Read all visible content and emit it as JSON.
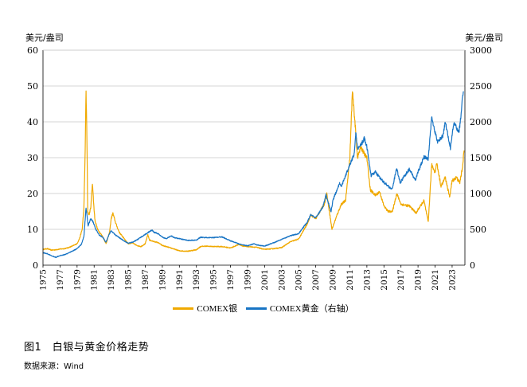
{
  "chart_data": {
    "type": "line",
    "title": "",
    "ylabel_left": "美元/盎司",
    "ylabel_right": "美元/盎司",
    "x_range": [
      1975,
      2024.5
    ],
    "x_ticks": [
      "1975",
      "1977",
      "1979",
      "1981",
      "1983",
      "1985",
      "1987",
      "1989",
      "1991",
      "1993",
      "1995",
      "1997",
      "1999",
      "2001",
      "2003",
      "2005",
      "2007",
      "2009",
      "2011",
      "2013",
      "2015",
      "2017",
      "2019",
      "2021",
      "2023"
    ],
    "y_left": {
      "range": [
        0,
        60
      ],
      "ticks": [
        "0",
        "10",
        "20",
        "30",
        "40",
        "50",
        "60"
      ]
    },
    "y_right": {
      "range": [
        0,
        3000
      ],
      "ticks": [
        "0",
        "500",
        "1000",
        "1500",
        "2000",
        "2500",
        "3000"
      ]
    },
    "grid": "horizontal",
    "legend_position": "bottom",
    "series": [
      {
        "name": "COMEX银",
        "axis": "left",
        "color": "#F0A900",
        "points": [
          [
            1975,
            4.4
          ],
          [
            1975.5,
            4.6
          ],
          [
            1976,
            4.2
          ],
          [
            1976.5,
            4.3
          ],
          [
            1977,
            4.5
          ],
          [
            1977.5,
            4.6
          ],
          [
            1978,
            4.9
          ],
          [
            1978.5,
            5.4
          ],
          [
            1979,
            6.0
          ],
          [
            1979.3,
            7.5
          ],
          [
            1979.6,
            10.0
          ],
          [
            1979.8,
            16.0
          ],
          [
            1979.95,
            32.0
          ],
          [
            1980.05,
            49.0
          ],
          [
            1980.15,
            36.0
          ],
          [
            1980.25,
            15.0
          ],
          [
            1980.4,
            14.0
          ],
          [
            1980.6,
            16.0
          ],
          [
            1980.8,
            23.0
          ],
          [
            1980.95,
            17.0
          ],
          [
            1981.1,
            12.5
          ],
          [
            1981.4,
            10.0
          ],
          [
            1981.7,
            9.0
          ],
          [
            1982,
            8.0
          ],
          [
            1982.4,
            6.0
          ],
          [
            1982.8,
            9.0
          ],
          [
            1983.0,
            13.0
          ],
          [
            1983.2,
            14.5
          ],
          [
            1983.5,
            12.0
          ],
          [
            1983.8,
            10.0
          ],
          [
            1984,
            9.0
          ],
          [
            1984.5,
            7.5
          ],
          [
            1985,
            6.0
          ],
          [
            1985.5,
            6.2
          ],
          [
            1986,
            5.5
          ],
          [
            1986.5,
            5.2
          ],
          [
            1987,
            6.0
          ],
          [
            1987.3,
            8.5
          ],
          [
            1987.5,
            7.0
          ],
          [
            1988,
            6.6
          ],
          [
            1988.5,
            6.3
          ],
          [
            1989,
            5.5
          ],
          [
            1990,
            4.8
          ],
          [
            1991,
            4.0
          ],
          [
            1992,
            3.9
          ],
          [
            1993,
            4.3
          ],
          [
            1993.5,
            5.2
          ],
          [
            1994,
            5.3
          ],
          [
            1995,
            5.2
          ],
          [
            1996,
            5.2
          ],
          [
            1997,
            4.8
          ],
          [
            1998,
            5.8
          ],
          [
            1998.5,
            5.3
          ],
          [
            1999,
            5.2
          ],
          [
            2000,
            5.0
          ],
          [
            2001,
            4.4
          ],
          [
            2002,
            4.6
          ],
          [
            2003,
            4.9
          ],
          [
            2004,
            6.5
          ],
          [
            2005,
            7.3
          ],
          [
            2006,
            11.5
          ],
          [
            2006.4,
            14.0
          ],
          [
            2007,
            13.0
          ],
          [
            2008,
            17.0
          ],
          [
            2008.3,
            20.0
          ],
          [
            2008.9,
            10.0
          ],
          [
            2009.5,
            14.0
          ],
          [
            2010,
            17.0
          ],
          [
            2010.5,
            18.0
          ],
          [
            2011,
            30.0
          ],
          [
            2011.3,
            48.5
          ],
          [
            2011.6,
            40.0
          ],
          [
            2011.9,
            30.0
          ],
          [
            2012.3,
            33.0
          ],
          [
            2012.7,
            31.0
          ],
          [
            2013,
            30.0
          ],
          [
            2013.4,
            21.0
          ],
          [
            2014,
            19.5
          ],
          [
            2014.5,
            20.5
          ],
          [
            2015,
            16.5
          ],
          [
            2015.5,
            15.0
          ],
          [
            2016,
            15.0
          ],
          [
            2016.5,
            20.0
          ],
          [
            2017,
            17.0
          ],
          [
            2018,
            16.5
          ],
          [
            2018.8,
            14.5
          ],
          [
            2019,
            15.5
          ],
          [
            2019.7,
            18.0
          ],
          [
            2020.2,
            12.0
          ],
          [
            2020.6,
            28.0
          ],
          [
            2021,
            26.0
          ],
          [
            2021.2,
            28.5
          ],
          [
            2021.7,
            22.0
          ],
          [
            2022.2,
            24.5
          ],
          [
            2022.7,
            19.0
          ],
          [
            2023,
            23.5
          ],
          [
            2023.5,
            24.5
          ],
          [
            2023.9,
            23.0
          ],
          [
            2024.2,
            27.0
          ],
          [
            2024.4,
            32.0
          ]
        ]
      },
      {
        "name": "COMEX黄金（右轴）",
        "axis": "right",
        "color": "#1874C4",
        "points": [
          [
            1975,
            175
          ],
          [
            1975.5,
            160
          ],
          [
            1976,
            130
          ],
          [
            1976.5,
            110
          ],
          [
            1977,
            135
          ],
          [
            1977.5,
            145
          ],
          [
            1978,
            170
          ],
          [
            1978.5,
            200
          ],
          [
            1979,
            230
          ],
          [
            1979.5,
            290
          ],
          [
            1979.8,
            400
          ],
          [
            1980.05,
            800
          ],
          [
            1980.3,
            550
          ],
          [
            1980.6,
            650
          ],
          [
            1980.9,
            600
          ],
          [
            1981.2,
            500
          ],
          [
            1981.6,
            420
          ],
          [
            1982,
            390
          ],
          [
            1982.4,
            320
          ],
          [
            1982.8,
            440
          ],
          [
            1983,
            480
          ],
          [
            1983.5,
            420
          ],
          [
            1984,
            380
          ],
          [
            1984.5,
            340
          ],
          [
            1985,
            305
          ],
          [
            1985.5,
            320
          ],
          [
            1986,
            350
          ],
          [
            1986.5,
            390
          ],
          [
            1987,
            430
          ],
          [
            1987.8,
            490
          ],
          [
            1988,
            460
          ],
          [
            1988.5,
            440
          ],
          [
            1989,
            390
          ],
          [
            1989.5,
            370
          ],
          [
            1990,
            410
          ],
          [
            1990.5,
            380
          ],
          [
            1991,
            370
          ],
          [
            1992,
            345
          ],
          [
            1993,
            350
          ],
          [
            1993.5,
            390
          ],
          [
            1994,
            385
          ],
          [
            1995,
            385
          ],
          [
            1996,
            395
          ],
          [
            1997,
            340
          ],
          [
            1997.5,
            320
          ],
          [
            1998,
            295
          ],
          [
            1999,
            270
          ],
          [
            1999.8,
            300
          ],
          [
            2000,
            285
          ],
          [
            2001,
            265
          ],
          [
            2002,
            310
          ],
          [
            2003,
            360
          ],
          [
            2004,
            410
          ],
          [
            2005,
            440
          ],
          [
            2006,
            600
          ],
          [
            2006.4,
            700
          ],
          [
            2007,
            660
          ],
          [
            2007.8,
            800
          ],
          [
            2008.2,
            980
          ],
          [
            2008.8,
            740
          ],
          [
            2009,
            900
          ],
          [
            2009.8,
            1150
          ],
          [
            2010,
            1100
          ],
          [
            2010.5,
            1250
          ],
          [
            2011,
            1400
          ],
          [
            2011.5,
            1550
          ],
          [
            2011.7,
            1850
          ],
          [
            2011.9,
            1620
          ],
          [
            2012.3,
            1680
          ],
          [
            2012.7,
            1770
          ],
          [
            2013,
            1650
          ],
          [
            2013.5,
            1250
          ],
          [
            2014,
            1300
          ],
          [
            2014.8,
            1180
          ],
          [
            2015.5,
            1100
          ],
          [
            2015.95,
            1060
          ],
          [
            2016.5,
            1350
          ],
          [
            2016.9,
            1150
          ],
          [
            2017.5,
            1260
          ],
          [
            2018,
            1340
          ],
          [
            2018.7,
            1180
          ],
          [
            2019,
            1300
          ],
          [
            2019.7,
            1510
          ],
          [
            2020.2,
            1480
          ],
          [
            2020.6,
            2060
          ],
          [
            2021,
            1850
          ],
          [
            2021.3,
            1720
          ],
          [
            2021.9,
            1800
          ],
          [
            2022.2,
            2000
          ],
          [
            2022.8,
            1630
          ],
          [
            2023.2,
            1990
          ],
          [
            2023.5,
            1920
          ],
          [
            2023.8,
            1850
          ],
          [
            2024,
            2050
          ],
          [
            2024.2,
            2300
          ],
          [
            2024.35,
            2420
          ]
        ]
      }
    ]
  },
  "legend": [
    {
      "label": "COMEX银",
      "color": "#F0A900"
    },
    {
      "label": "COMEX黄金（右轴）",
      "color": "#1874C4"
    }
  ],
  "caption": "图1　白银与黄金价格走势",
  "source": "数据来源：Wind"
}
